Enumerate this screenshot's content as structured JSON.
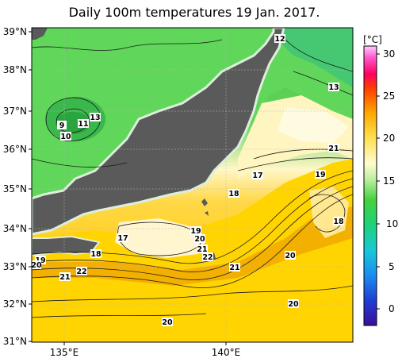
{
  "title": "Daily 100m temperatures 19 Jan. 2017.",
  "colorbar": {
    "unit": "[°C]",
    "ticks": [
      "30",
      "25",
      "20",
      "15",
      "10",
      "5",
      "0"
    ]
  },
  "axes": {
    "lat_labels": [
      "39°N",
      "38°N",
      "37°N",
      "36°N",
      "35°N",
      "34°N",
      "33°N",
      "32°N",
      "31°N"
    ],
    "lon_labels": [
      "135°E",
      "140°E"
    ]
  },
  "contour_labels": [
    "12",
    "13",
    "9",
    "11",
    "13",
    "10",
    "21",
    "17",
    "19",
    "18",
    "18",
    "17",
    "19",
    "20",
    "21",
    "22",
    "18",
    "19",
    "20",
    "22",
    "21",
    "21",
    "20",
    "20",
    "20"
  ],
  "colors": {
    "land": "#5a5a5a",
    "coast": "#dcefdc",
    "warm": "#f5b400",
    "cool": "#5cd35c"
  }
}
